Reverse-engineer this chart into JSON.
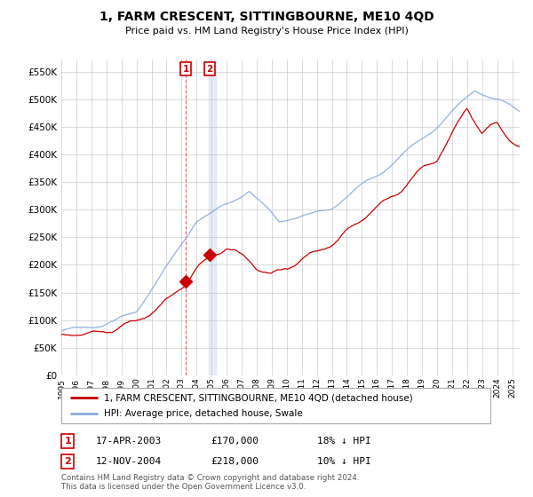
{
  "title": "1, FARM CRESCENT, SITTINGBOURNE, ME10 4QD",
  "subtitle": "Price paid vs. HM Land Registry's House Price Index (HPI)",
  "ylabel_ticks": [
    0,
    50000,
    100000,
    150000,
    200000,
    250000,
    300000,
    350000,
    400000,
    450000,
    500000,
    550000
  ],
  "ylim": [
    0,
    572000
  ],
  "xlim_start": 1995.0,
  "xlim_end": 2025.5,
  "sale1_year": 2003.29,
  "sale1_price": 170000,
  "sale1_label": "17-APR-2003",
  "sale1_hpi_pct": "18% ↓ HPI",
  "sale2_year": 2004.87,
  "sale2_price": 218000,
  "sale2_label": "12-NOV-2004",
  "sale2_hpi_pct": "10% ↓ HPI",
  "legend_property": "1, FARM CRESCENT, SITTINGBOURNE, ME10 4QD (detached house)",
  "legend_hpi": "HPI: Average price, detached house, Swale",
  "footnote": "Contains HM Land Registry data © Crown copyright and database right 2024.\nThis data is licensed under the Open Government Licence v3.0.",
  "line_color_property": "#cc0000",
  "line_color_hpi": "#88aadd",
  "marker_box_color": "#cc0000",
  "bg_color": "#ffffff",
  "grid_color": "#cccccc",
  "figwidth": 6.0,
  "figheight": 5.6,
  "dpi": 100
}
